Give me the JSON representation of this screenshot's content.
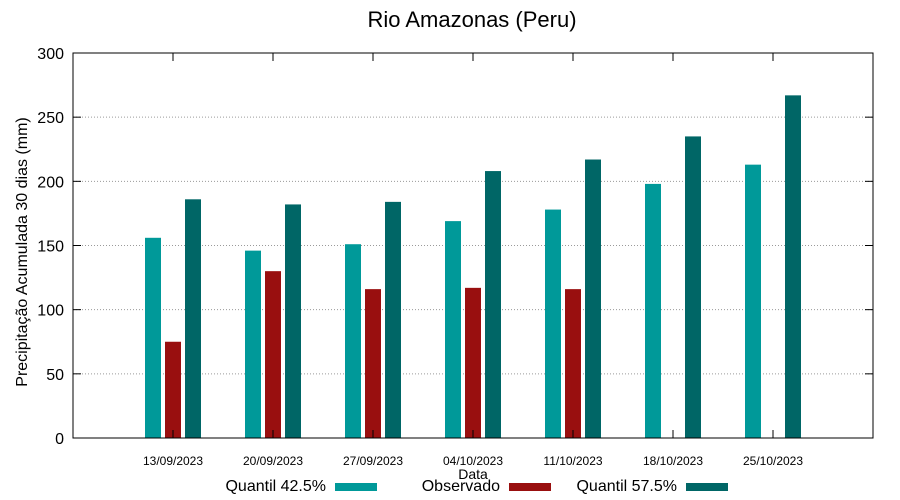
{
  "chart_data": {
    "type": "bar",
    "title": "Rio Amazonas (Peru)",
    "xlabel": "Data",
    "ylabel": "Precipitação Acumulada 30 dias (mm)",
    "ylim": [
      0,
      300
    ],
    "yticks": [
      0,
      50,
      100,
      150,
      200,
      250,
      300
    ],
    "grid": true,
    "legend_position": "bottom",
    "categories": [
      "13/09/2023",
      "20/09/2023",
      "27/09/2023",
      "04/10/2023",
      "11/10/2023",
      "18/10/2023",
      "25/10/2023"
    ],
    "series": [
      {
        "name": "Quantil 42.5%",
        "color": "#009999",
        "values": [
          156,
          146,
          151,
          169,
          178,
          198,
          213
        ]
      },
      {
        "name": "Observado",
        "color": "#990F0F",
        "values": [
          75,
          130,
          116,
          117,
          116,
          null,
          null
        ]
      },
      {
        "name": "Quantil 57.5%",
        "color": "#006666",
        "values": [
          186,
          182,
          184,
          208,
          217,
          235,
          267
        ]
      }
    ]
  }
}
